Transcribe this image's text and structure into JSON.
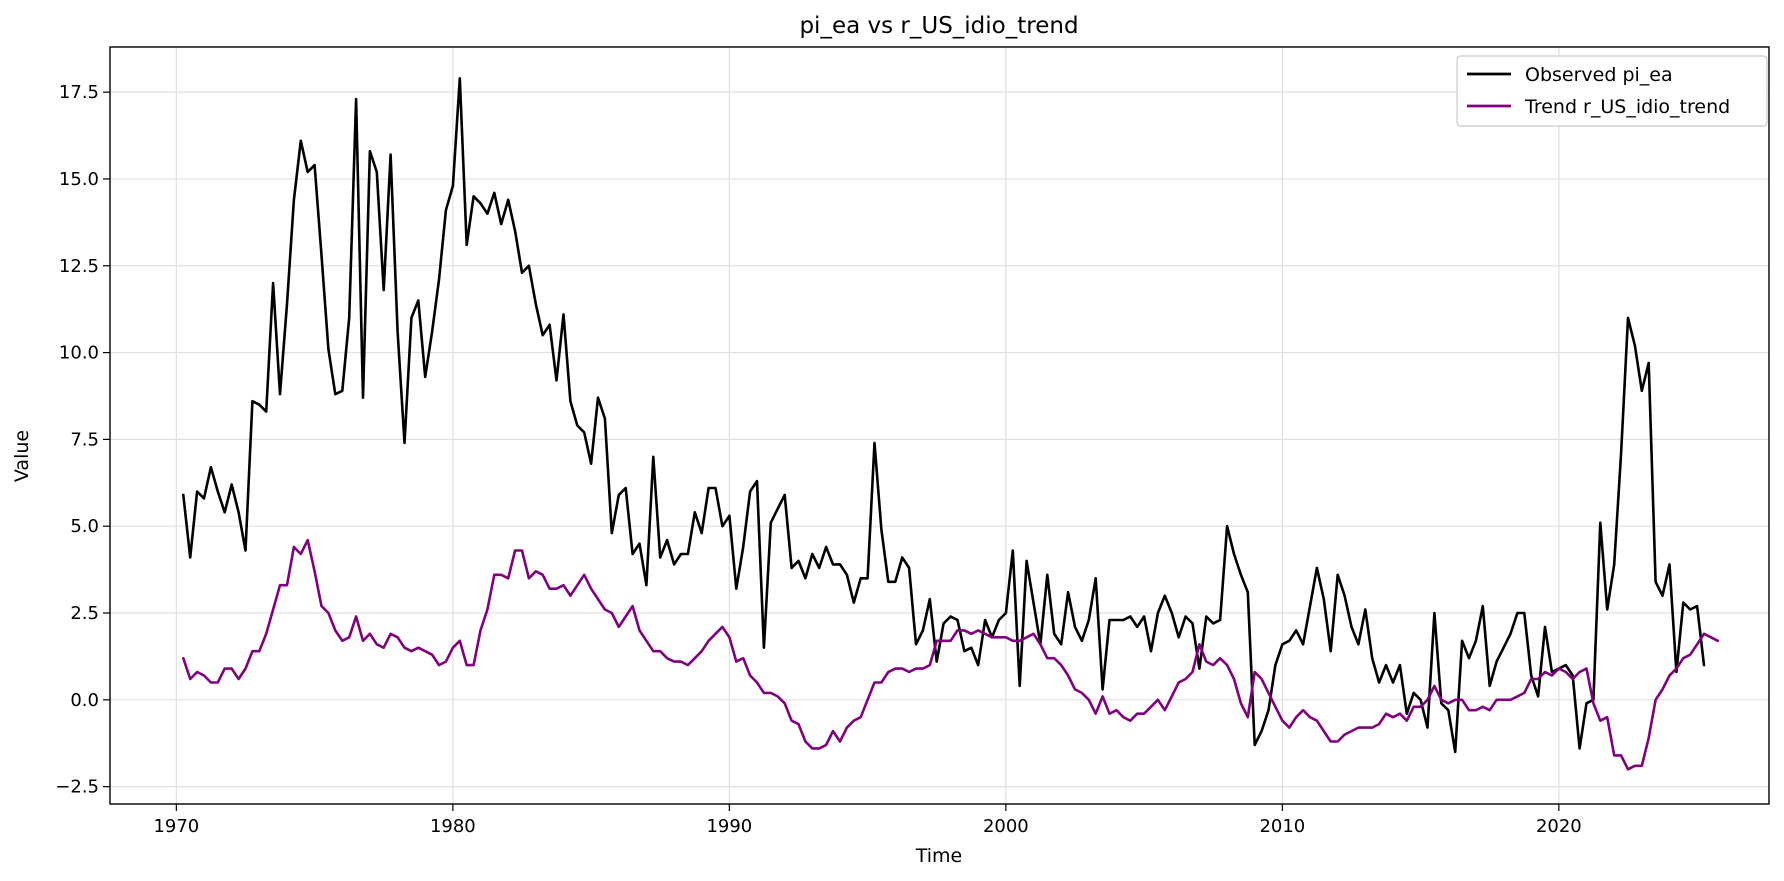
{
  "chart_data": {
    "type": "line",
    "title": "pi_ea vs r_US_idio_trend",
    "xlabel": "Time",
    "ylabel": "Value",
    "xlim": [
      1967.6,
      2027.6
    ],
    "ylim": [
      -3.0,
      18.8
    ],
    "x_ticks": [
      1970,
      1980,
      1990,
      2000,
      2010,
      2020
    ],
    "x_tick_labels": [
      "1970",
      "1980",
      "1990",
      "2000",
      "2010",
      "2020"
    ],
    "y_ticks": [
      -2.5,
      0.0,
      2.5,
      5.0,
      7.5,
      10.0,
      12.5,
      15.0,
      17.5
    ],
    "y_tick_labels": [
      "−2.5",
      "0.0",
      "2.5",
      "5.0",
      "7.5",
      "10.0",
      "12.5",
      "15.0",
      "17.5"
    ],
    "grid": true,
    "legend_position": "top-right",
    "x_start": 1970.25,
    "x_step": 0.25,
    "series": [
      {
        "name": "Observed pi_ea",
        "color": "#000000",
        "values": [
          5.9,
          4.1,
          6.0,
          5.8,
          6.7,
          6.0,
          5.4,
          6.2,
          5.4,
          4.3,
          8.6,
          8.5,
          8.3,
          12.0,
          8.8,
          11.4,
          14.4,
          16.1,
          15.2,
          15.4,
          12.8,
          10.1,
          8.8,
          8.9,
          11.0,
          17.3,
          8.7,
          15.8,
          15.2,
          11.8,
          15.7,
          10.6,
          7.4,
          11.0,
          11.5,
          9.3,
          10.6,
          12.1,
          14.1,
          14.8,
          17.9,
          13.1,
          14.5,
          14.3,
          14.0,
          14.6,
          13.7,
          14.4,
          13.5,
          12.3,
          12.5,
          11.4,
          10.5,
          10.8,
          9.2,
          11.1,
          8.6,
          7.9,
          7.7,
          6.8,
          8.7,
          8.1,
          4.8,
          5.9,
          6.1,
          4.2,
          4.5,
          3.3,
          7.0,
          4.1,
          4.6,
          3.9,
          4.2,
          4.2,
          5.4,
          4.8,
          6.1,
          6.1,
          5.0,
          5.3,
          3.2,
          4.4,
          6.0,
          6.3,
          1.5,
          5.1,
          5.5,
          5.9,
          3.8,
          4.0,
          3.5,
          4.2,
          3.8,
          4.4,
          3.9,
          3.9,
          3.6,
          2.8,
          3.5,
          3.5,
          7.4,
          4.9,
          3.4,
          3.4,
          4.1,
          3.8,
          1.6,
          2.0,
          2.9,
          1.1,
          2.2,
          2.4,
          2.3,
          1.4,
          1.5,
          1.0,
          2.3,
          1.8,
          2.3,
          2.5,
          4.3,
          0.4,
          4.0,
          2.8,
          1.6,
          3.6,
          1.9,
          1.6,
          3.1,
          2.1,
          1.7,
          2.3,
          3.5,
          0.3,
          2.3,
          2.3,
          2.3,
          2.4,
          2.1,
          2.4,
          1.4,
          2.5,
          3.0,
          2.5,
          1.8,
          2.4,
          2.2,
          0.9,
          2.4,
          2.2,
          2.3,
          5.0,
          4.2,
          3.6,
          3.1,
          -1.3,
          -0.9,
          -0.3,
          1.0,
          1.6,
          1.7,
          2.0,
          1.6,
          2.7,
          3.8,
          2.9,
          1.4,
          3.6,
          3.0,
          2.1,
          1.6,
          2.6,
          1.2,
          0.5,
          1.0,
          0.5,
          1.0,
          -0.4,
          0.2,
          0.0,
          -0.8,
          2.5,
          -0.1,
          -0.3,
          -1.5,
          1.7,
          1.2,
          1.7,
          2.7,
          0.4,
          1.1,
          1.5,
          1.9,
          2.5,
          2.5,
          0.7,
          0.1,
          2.1,
          0.8,
          0.9,
          1.0,
          0.7,
          -1.4,
          -0.1,
          0.0,
          5.1,
          2.6,
          3.9,
          7.1,
          11.0,
          10.2,
          8.9,
          9.7,
          3.4,
          3.0,
          3.9,
          0.8,
          2.8,
          2.6,
          2.7,
          1.0
        ]
      },
      {
        "name": "Trend r_US_idio_trend",
        "color": "#800080",
        "values": [
          1.2,
          0.6,
          0.8,
          0.7,
          0.5,
          0.5,
          0.9,
          0.9,
          0.6,
          0.9,
          1.4,
          1.4,
          1.9,
          2.6,
          3.3,
          3.3,
          4.4,
          4.2,
          4.6,
          3.7,
          2.7,
          2.5,
          2.0,
          1.7,
          1.8,
          2.4,
          1.7,
          1.9,
          1.6,
          1.5,
          1.9,
          1.8,
          1.5,
          1.4,
          1.5,
          1.4,
          1.3,
          1.0,
          1.1,
          1.5,
          1.7,
          1.0,
          1.0,
          2.0,
          2.6,
          3.6,
          3.6,
          3.5,
          4.3,
          4.3,
          3.5,
          3.7,
          3.6,
          3.2,
          3.2,
          3.3,
          3.0,
          3.3,
          3.6,
          3.2,
          2.9,
          2.6,
          2.5,
          2.1,
          2.4,
          2.7,
          2.0,
          1.7,
          1.4,
          1.4,
          1.2,
          1.1,
          1.1,
          1.0,
          1.2,
          1.4,
          1.7,
          1.9,
          2.1,
          1.8,
          1.1,
          1.2,
          0.7,
          0.5,
          0.2,
          0.2,
          0.1,
          -0.1,
          -0.6,
          -0.7,
          -1.2,
          -1.4,
          -1.4,
          -1.3,
          -0.9,
          -1.2,
          -0.8,
          -0.6,
          -0.5,
          0.0,
          0.5,
          0.5,
          0.8,
          0.9,
          0.9,
          0.8,
          0.9,
          0.9,
          1.0,
          1.7,
          1.7,
          1.7,
          2.0,
          2.0,
          1.9,
          2.0,
          1.9,
          1.8,
          1.8,
          1.8,
          1.7,
          1.7,
          1.8,
          1.9,
          1.6,
          1.2,
          1.2,
          1.0,
          0.7,
          0.3,
          0.2,
          0.0,
          -0.4,
          0.1,
          -0.4,
          -0.3,
          -0.5,
          -0.6,
          -0.4,
          -0.4,
          -0.2,
          0.0,
          -0.3,
          0.1,
          0.5,
          0.6,
          0.8,
          1.6,
          1.1,
          1.0,
          1.2,
          1.0,
          0.6,
          -0.1,
          -0.5,
          0.8,
          0.6,
          0.2,
          -0.2,
          -0.6,
          -0.8,
          -0.5,
          -0.3,
          -0.5,
          -0.6,
          -0.9,
          -1.2,
          -1.2,
          -1.0,
          -0.9,
          -0.8,
          -0.8,
          -0.8,
          -0.7,
          -0.4,
          -0.5,
          -0.4,
          -0.6,
          -0.2,
          -0.2,
          0.0,
          0.4,
          0.0,
          -0.1,
          0.0,
          0.0,
          -0.3,
          -0.3,
          -0.2,
          -0.3,
          0.0,
          0.0,
          0.0,
          0.1,
          0.2,
          0.6,
          0.6,
          0.8,
          0.7,
          0.9,
          0.8,
          0.6,
          0.8,
          0.9,
          -0.1,
          -0.6,
          -0.5,
          -1.6,
          -1.6,
          -2.0,
          -1.9,
          -1.9,
          -1.1,
          0.0,
          0.3,
          0.7,
          0.9,
          1.2,
          1.3,
          1.6,
          1.9,
          1.8,
          1.7
        ]
      }
    ]
  }
}
